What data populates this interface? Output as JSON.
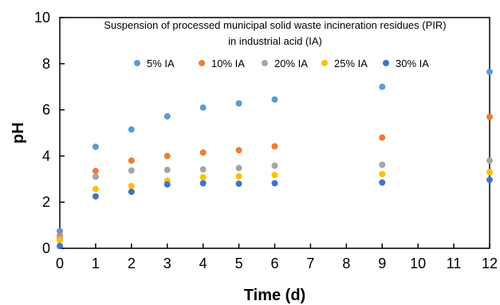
{
  "chart_data": {
    "type": "scatter",
    "title_lines": [
      "Suspension of processed municipal solid waste incineration residues (PIR)",
      "in industrial acid (IA)"
    ],
    "xlabel": "Time (d)",
    "ylabel": "pH",
    "xlim": [
      0,
      12
    ],
    "ylim": [
      0,
      10
    ],
    "x_ticks": [
      0,
      1,
      2,
      3,
      4,
      5,
      6,
      7,
      8,
      9,
      10,
      11,
      12
    ],
    "y_ticks": [
      0,
      2,
      4,
      6,
      8,
      10
    ],
    "grid": false,
    "legend_position": "top",
    "series": [
      {
        "name": "5% IA",
        "color": "#5B9BD5",
        "x": [
          0,
          1,
          2,
          3,
          4,
          5,
          6,
          9,
          12
        ],
        "y": [
          0.75,
          4.4,
          5.15,
          5.72,
          6.1,
          6.28,
          6.45,
          7.0,
          7.65
        ]
      },
      {
        "name": "10% IA",
        "color": "#ED7D31",
        "x": [
          0,
          1,
          2,
          3,
          4,
          5,
          6,
          9,
          12
        ],
        "y": [
          0.55,
          3.35,
          3.8,
          4.0,
          4.15,
          4.25,
          4.42,
          4.8,
          5.7
        ]
      },
      {
        "name": "20% IA",
        "color": "#A5A5A5",
        "x": [
          0,
          1,
          2,
          3,
          4,
          5,
          6,
          9,
          12
        ],
        "y": [
          0.45,
          3.1,
          3.37,
          3.4,
          3.42,
          3.48,
          3.58,
          3.62,
          3.8
        ]
      },
      {
        "name": "25% IA",
        "color": "#FFC000",
        "x": [
          0,
          1,
          2,
          3,
          4,
          5,
          6,
          9,
          12
        ],
        "y": [
          0.35,
          2.57,
          2.7,
          2.93,
          3.08,
          3.12,
          3.18,
          3.22,
          3.3
        ]
      },
      {
        "name": "30% IA",
        "color": "#4472C4",
        "x": [
          0,
          1,
          2,
          3,
          4,
          5,
          6,
          9,
          12
        ],
        "y": [
          0.1,
          2.25,
          2.45,
          2.77,
          2.82,
          2.8,
          2.82,
          2.85,
          2.97
        ]
      }
    ]
  }
}
